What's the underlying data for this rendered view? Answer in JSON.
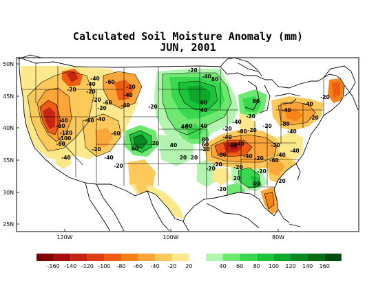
{
  "title": "Calculated Soil Moisture Anomaly (mm)",
  "subtitle": "JUN, 2001",
  "axes": {
    "lat_labels": [
      "50N",
      "45N",
      "40N",
      "35N",
      "30N",
      "25N"
    ],
    "lon_labels": [
      "120W",
      "100W",
      "80W"
    ]
  },
  "colors": {
    "dry": [
      "#7f0000",
      "#a80d0d",
      "#c42514",
      "#df3d14",
      "#ef5c12",
      "#f78218",
      "#fca63a",
      "#fdc95a",
      "#fde98c"
    ],
    "neutral": "#ffffff",
    "wet": [
      "#b3f5b0",
      "#6fe872",
      "#3ad84f",
      "#1cc43a",
      "#0da82a",
      "#088a20",
      "#066c18",
      "#044c10"
    ]
  },
  "legend_labels": [
    "-160",
    "-140",
    "-120",
    "-100",
    "-80",
    "-60",
    "-40",
    "-20",
    "20",
    "40",
    "60",
    "80",
    "100",
    "120",
    "140",
    "160"
  ],
  "contour_labels": [
    "-40",
    "-20",
    "-60",
    "-40",
    "-20",
    "-40",
    "-20",
    "-60",
    "-20",
    "-40",
    "-20",
    "-20",
    "80",
    "-20",
    "-40",
    "60",
    "40",
    "80",
    "40",
    "-40",
    "-80",
    "-120",
    "-100",
    "-80",
    "-60",
    "-40",
    "40",
    "40",
    "-60",
    "-40",
    "-40",
    "-20",
    "-20",
    "60",
    "20",
    "40",
    "20",
    "80",
    "60",
    "-40",
    "-20",
    "-20",
    "-40",
    "-80",
    "-20",
    "-20",
    "-20",
    "-40",
    "-80",
    "-60",
    "-20",
    "20",
    "-20",
    "-20",
    "-40",
    "-40",
    "-20",
    "-20",
    "-40",
    "-20",
    "-80",
    "-20",
    "-40",
    "-40",
    "-60",
    "-40",
    "-20",
    "20",
    "-20",
    "-20",
    "40"
  ]
}
